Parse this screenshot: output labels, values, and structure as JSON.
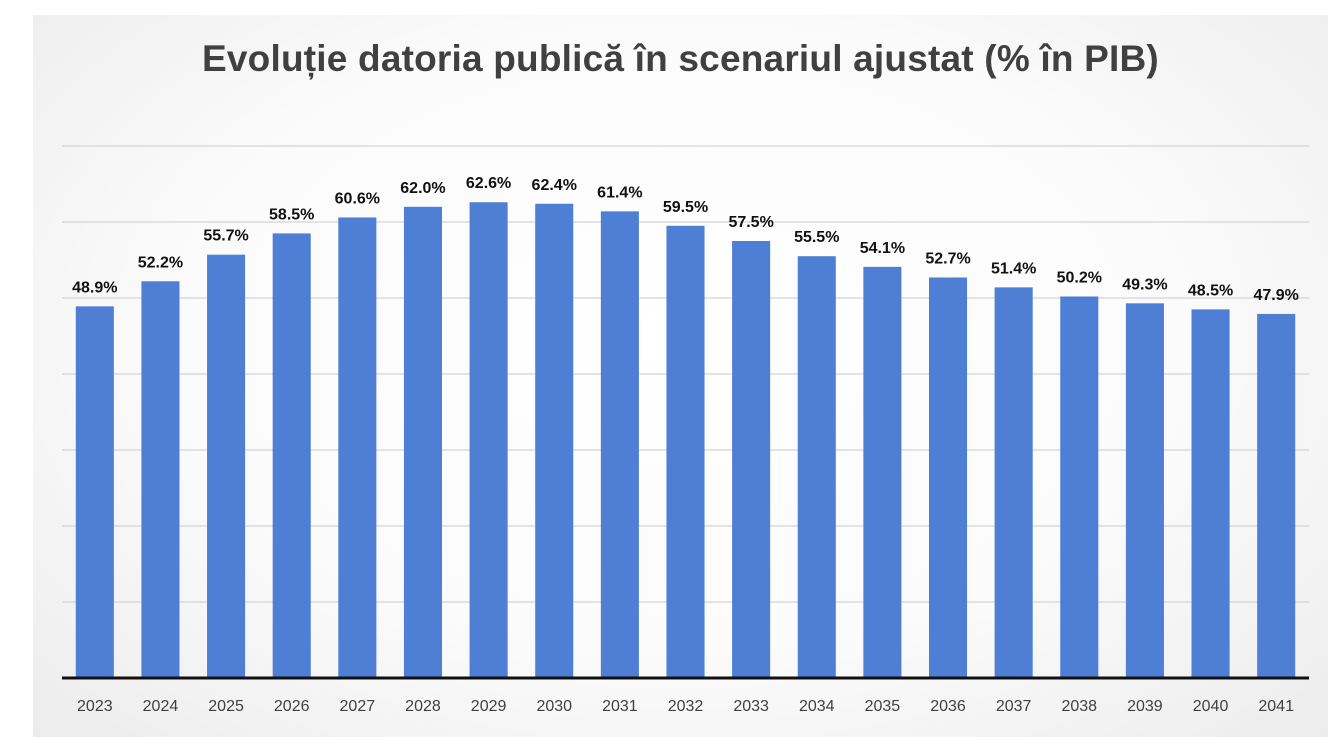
{
  "chart_data": {
    "type": "bar",
    "title": "Evoluție datoria publică în scenariul ajustat (% în PIB)",
    "xlabel": "",
    "ylabel": "",
    "ylim": [
      0,
      75
    ],
    "grid": true,
    "legend": "none",
    "bar_color": "#4f7fd4",
    "categories": [
      "2023",
      "2024",
      "2025",
      "2026",
      "2027",
      "2028",
      "2029",
      "2030",
      "2031",
      "2032",
      "2033",
      "2034",
      "2035",
      "2036",
      "2037",
      "2038",
      "2039",
      "2040",
      "2041"
    ],
    "values": [
      48.9,
      52.2,
      55.7,
      58.5,
      60.6,
      62.0,
      62.6,
      62.4,
      61.4,
      59.5,
      57.5,
      55.5,
      54.1,
      52.7,
      51.4,
      50.2,
      49.3,
      48.5,
      47.9
    ],
    "data_labels": [
      "48.9%",
      "52.2%",
      "55.7%",
      "58.5%",
      "60.6%",
      "62.0%",
      "62.6%",
      "62.4%",
      "61.4%",
      "59.5%",
      "57.5%",
      "55.5%",
      "54.1%",
      "52.7%",
      "51.4%",
      "50.2%",
      "49.3%",
      "48.5%",
      "47.9%"
    ]
  }
}
